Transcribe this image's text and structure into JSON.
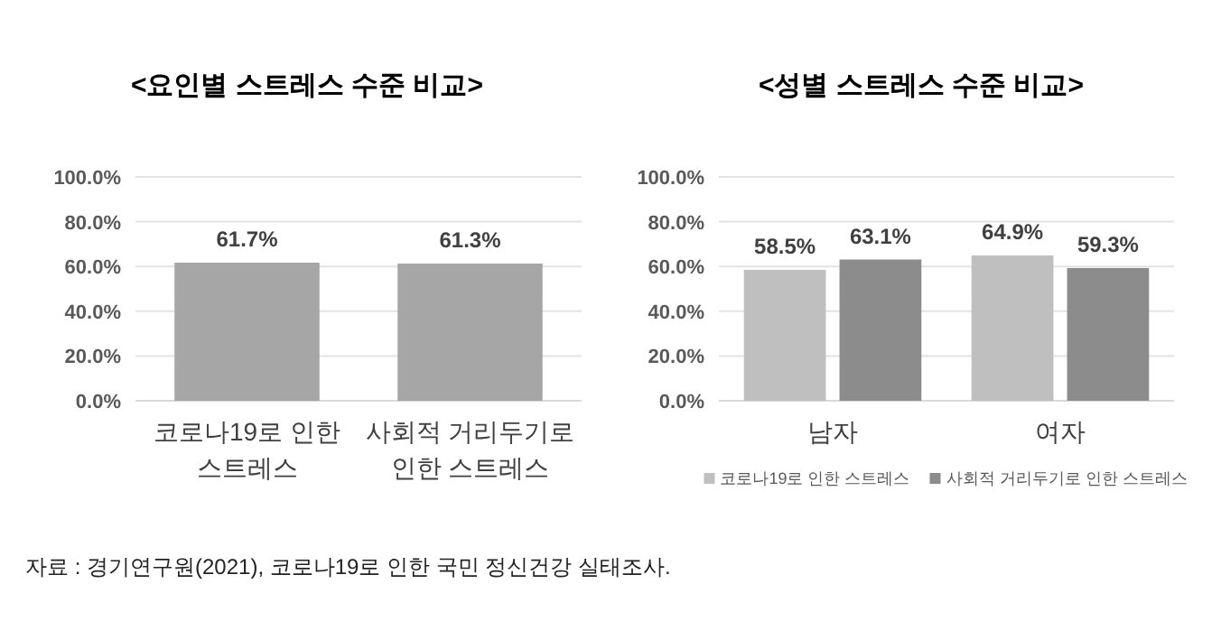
{
  "chart_data": [
    {
      "type": "bar",
      "title": "<요인별 스트레스 수준 비교>",
      "categories": [
        "코로나19로 인한 스트레스",
        "사회적 거리두기로 인한 스트레스"
      ],
      "series": [
        {
          "color": "#a6a6a6",
          "values": [
            61.7,
            61.3
          ],
          "value_labels": [
            "61.7%",
            "61.3%"
          ]
        }
      ],
      "ylim": [
        0,
        100
      ],
      "yticks": [
        {
          "value": 0,
          "label": "0.0%"
        },
        {
          "value": 20,
          "label": "20.0%"
        },
        {
          "value": 40,
          "label": "40.0%"
        },
        {
          "value": 60,
          "label": "60.0%"
        },
        {
          "value": 80,
          "label": "80.0%"
        },
        {
          "value": 100,
          "label": "100.0%"
        }
      ],
      "grid": "y",
      "legend": false,
      "annotations": [
        "자료 : 경기연구원(2021), 코로나19로 인한 국민 정신건강 실태조사."
      ]
    },
    {
      "type": "bar",
      "title": "<성별 스트레스 수준 비교>",
      "categories": [
        "남자",
        "여자"
      ],
      "series": [
        {
          "name": "코로나19로 인한 스트레스",
          "color": "#bfbfbf",
          "values": [
            58.5,
            64.9
          ],
          "value_labels": [
            "58.5%",
            "64.9%"
          ]
        },
        {
          "name": "사회적 거리두기로 인한 스트레스",
          "color": "#8c8c8c",
          "values": [
            63.1,
            59.3
          ],
          "value_labels": [
            "63.1%",
            "59.3%"
          ]
        }
      ],
      "ylim": [
        0,
        100
      ],
      "yticks": [
        {
          "value": 0,
          "label": "0.0%"
        },
        {
          "value": 20,
          "label": "20.0%"
        },
        {
          "value": 40,
          "label": "40.0%"
        },
        {
          "value": 60,
          "label": "60.0%"
        },
        {
          "value": 80,
          "label": "80.0%"
        },
        {
          "value": 100,
          "label": "100.0%"
        }
      ],
      "grid": "y",
      "legend": "bottom"
    }
  ]
}
